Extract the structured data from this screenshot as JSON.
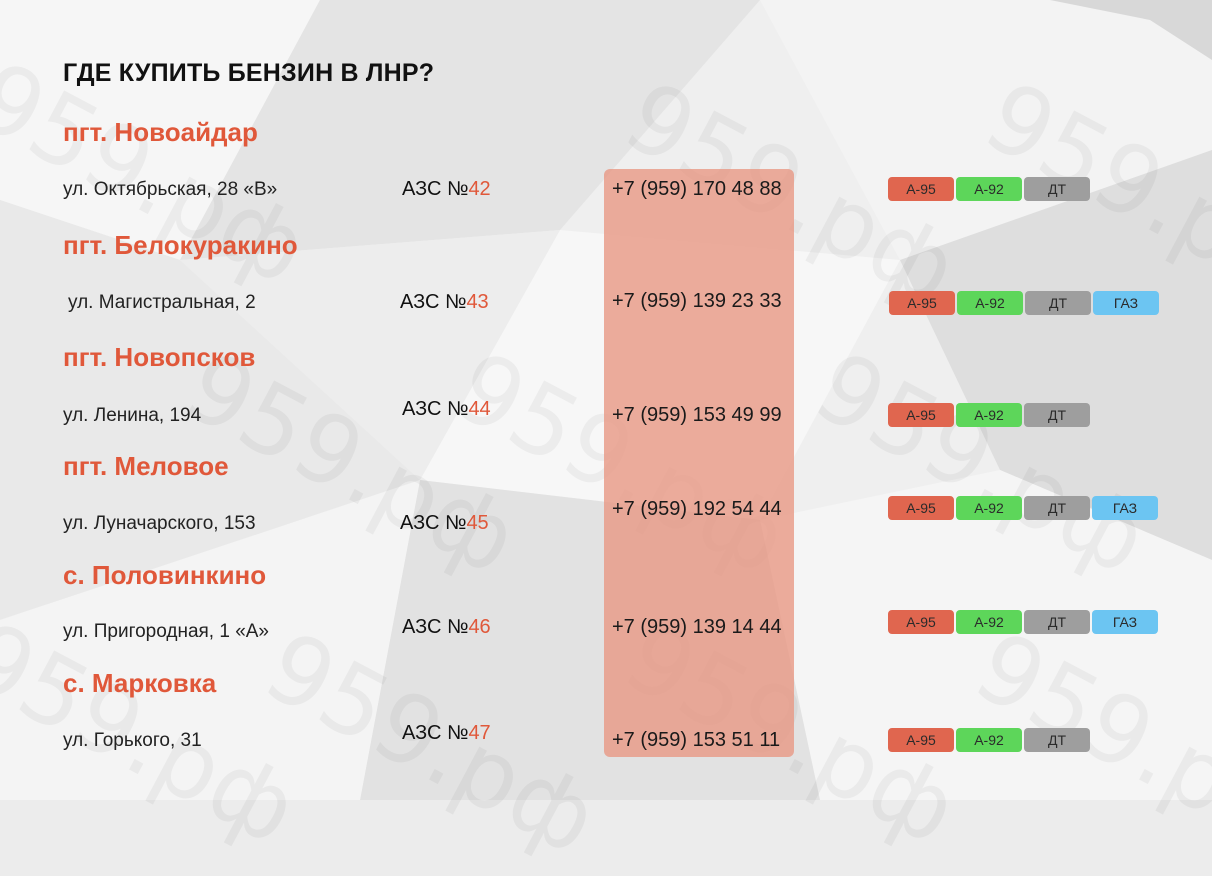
{
  "title": "ГДЕ КУПИТЬ БЕНЗИН В ЛНР?",
  "watermark": "959.рф",
  "colors": {
    "accent": "#e0583a",
    "a95": "#e0664f",
    "a92": "#5dd65a",
    "dt": "#9e9e9e",
    "gas": "#6cc5f2",
    "phone_column": "#e8a08e"
  },
  "azs_prefix": "АЗС №",
  "stations": [
    {
      "town": "пгт. Новоайдар",
      "address": "ул. Октябрьская, 28 «В»",
      "azs_number": "42",
      "phone": "+7 (959) 170 48 88",
      "fuels": [
        "А-95",
        "А-92",
        "ДТ"
      ]
    },
    {
      "town": "пгт. Белокуракино",
      "address": "ул. Магистральная, 2",
      "azs_number": "43",
      "phone": "+7 (959) 139 23 33",
      "fuels": [
        "А-95",
        "А-92",
        "ДТ",
        "ГАЗ"
      ]
    },
    {
      "town": "пгт. Новопсков",
      "address": "ул. Ленина, 194",
      "azs_number": "44",
      "phone": "+7 (959) 153 49 99",
      "fuels": [
        "А-95",
        "А-92",
        "ДТ"
      ]
    },
    {
      "town": "пгт. Меловое",
      "address": "ул. Луначарского, 153",
      "azs_number": "45",
      "phone": "+7 (959) 192 54 44",
      "fuels": [
        "А-95",
        "А-92",
        "ДТ",
        "ГАЗ"
      ]
    },
    {
      "town": "с. Половинкино",
      "address": "ул. Пригородная, 1 «А»",
      "azs_number": "46",
      "phone": "+7 (959) 139 14 44",
      "fuels": [
        "А-95",
        "А-92",
        "ДТ",
        "ГАЗ"
      ]
    },
    {
      "town": "с. Марковка",
      "address": "ул. Горького, 31",
      "azs_number": "47",
      "phone": "+7 (959) 153 51 11",
      "fuels": [
        "А-95",
        "А-92",
        "ДТ"
      ]
    }
  ]
}
